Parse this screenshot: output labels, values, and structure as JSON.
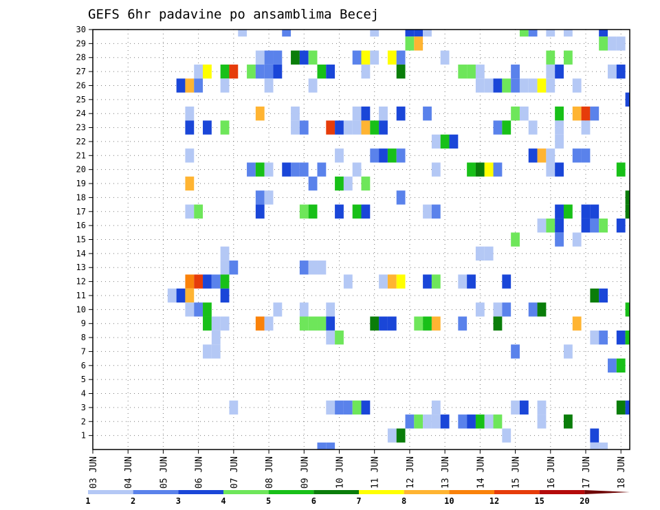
{
  "chart_data": {
    "type": "heatmap",
    "title": "GEFS 6hr padavine po ansamblima Becej",
    "xlabel": "",
    "ylabel": "",
    "x_tick_labels": [
      "03 JUN",
      "04 JUN",
      "05 JUN",
      "06 JUN",
      "07 JUN",
      "08 JUN",
      "09 JUN",
      "10 JUN",
      "11 JUN",
      "12 JUN",
      "13 JUN",
      "14 JUN",
      "15 JUN",
      "16 JUN",
      "17 JUN",
      "18 JUN"
    ],
    "y_tick_labels": [
      "1",
      "2",
      "3",
      "4",
      "5",
      "6",
      "7",
      "8",
      "9",
      "10",
      "11",
      "12",
      "13",
      "14",
      "15",
      "16",
      "17",
      "18",
      "19",
      "20",
      "21",
      "22",
      "23",
      "24",
      "25",
      "26",
      "27",
      "28",
      "29",
      "30"
    ],
    "x_range": [
      0,
      61
    ],
    "y_range": [
      0,
      30
    ],
    "grid": true,
    "grid_style": "dotted",
    "colorbar": {
      "labels": [
        "1",
        "2",
        "3",
        "4",
        "5",
        "6",
        "7",
        "8",
        "10",
        "12",
        "15",
        "20"
      ],
      "colors": [
        "#b4c8f5",
        "#5a82eb",
        "#1a46d8",
        "#6ee65a",
        "#18c018",
        "#0a7d0a",
        "#ffff00",
        "#ffb432",
        "#fa820a",
        "#e63c0a",
        "#b40a0a",
        "#6e0505"
      ]
    },
    "cells": [
      {
        "m": 30,
        "s": [
          [
            17,
            "b1"
          ],
          [
            22,
            "b2"
          ],
          [
            32,
            "b1"
          ],
          [
            36,
            "b3"
          ],
          [
            37,
            "b3"
          ],
          [
            38,
            "b1"
          ],
          [
            49,
            "g1"
          ],
          [
            50,
            "b2"
          ],
          [
            52,
            "b1"
          ],
          [
            54,
            "b1"
          ],
          [
            58,
            "b3"
          ]
        ]
      },
      {
        "m": 29,
        "s": [
          [
            36,
            "g1"
          ],
          [
            37,
            "o1"
          ],
          [
            58,
            "g1"
          ],
          [
            59,
            "b1"
          ],
          [
            60,
            "b1"
          ]
        ]
      },
      {
        "m": 28,
        "s": [
          [
            19,
            "b1"
          ],
          [
            20,
            "b2"
          ],
          [
            21,
            "b2"
          ],
          [
            23,
            "g3"
          ],
          [
            24,
            "b3"
          ],
          [
            25,
            "g1"
          ],
          [
            30,
            "b2"
          ],
          [
            31,
            "y"
          ],
          [
            32,
            "b1"
          ],
          [
            34,
            "y"
          ],
          [
            35,
            "b2"
          ],
          [
            40,
            "b1"
          ],
          [
            52,
            "g1"
          ],
          [
            54,
            "g1"
          ]
        ]
      },
      {
        "m": 27,
        "s": [
          [
            12,
            "b1"
          ],
          [
            13,
            "y"
          ],
          [
            15,
            "g2"
          ],
          [
            16,
            "r1"
          ],
          [
            18,
            "g1"
          ],
          [
            19,
            "b2"
          ],
          [
            20,
            "b2"
          ],
          [
            21,
            "b3"
          ],
          [
            26,
            "g2"
          ],
          [
            27,
            "b3"
          ],
          [
            31,
            "b1"
          ],
          [
            35,
            "g3"
          ],
          [
            42,
            "g1"
          ],
          [
            43,
            "g1"
          ],
          [
            44,
            "b1"
          ],
          [
            48,
            "b2"
          ],
          [
            52,
            "b1"
          ],
          [
            53,
            "b3"
          ],
          [
            59,
            "b1"
          ],
          [
            60,
            "b3"
          ]
        ]
      },
      {
        "m": 26,
        "s": [
          [
            10,
            "b3"
          ],
          [
            11,
            "o1"
          ],
          [
            12,
            "b2"
          ],
          [
            15,
            "b1"
          ],
          [
            20,
            "b1"
          ],
          [
            25,
            "b1"
          ],
          [
            44,
            "b1"
          ],
          [
            45,
            "b1"
          ],
          [
            46,
            "b3"
          ],
          [
            47,
            "g1"
          ],
          [
            48,
            "b2"
          ],
          [
            49,
            "b1"
          ],
          [
            50,
            "b1"
          ],
          [
            51,
            "y"
          ],
          [
            52,
            "b1"
          ],
          [
            55,
            "b1"
          ]
        ]
      },
      {
        "m": 25,
        "s": [
          [
            61,
            "b3"
          ]
        ]
      },
      {
        "m": 24,
        "s": [
          [
            11,
            "b1"
          ],
          [
            19,
            "o1"
          ],
          [
            23,
            "b1"
          ],
          [
            30,
            "b1"
          ],
          [
            31,
            "b3"
          ],
          [
            33,
            "b1"
          ],
          [
            35,
            "b3"
          ],
          [
            38,
            "b2"
          ],
          [
            48,
            "g1"
          ],
          [
            49,
            "b1"
          ],
          [
            53,
            "g2"
          ],
          [
            55,
            "o1"
          ],
          [
            56,
            "r1"
          ],
          [
            57,
            "b2"
          ]
        ]
      },
      {
        "m": 23,
        "s": [
          [
            11,
            "b3"
          ],
          [
            13,
            "b3"
          ],
          [
            15,
            "g1"
          ],
          [
            23,
            "b1"
          ],
          [
            24,
            "b2"
          ],
          [
            27,
            "r1"
          ],
          [
            28,
            "b3"
          ],
          [
            29,
            "b1"
          ],
          [
            30,
            "b1"
          ],
          [
            31,
            "o1"
          ],
          [
            32,
            "g2"
          ],
          [
            33,
            "b3"
          ],
          [
            46,
            "b2"
          ],
          [
            47,
            "g2"
          ],
          [
            50,
            "b1"
          ],
          [
            53,
            "b1"
          ],
          [
            56,
            "b1"
          ]
        ]
      },
      {
        "m": 22,
        "s": [
          [
            39,
            "b1"
          ],
          [
            40,
            "g2"
          ],
          [
            41,
            "b3"
          ],
          [
            53,
            "b1"
          ]
        ]
      },
      {
        "m": 21,
        "s": [
          [
            11,
            "b1"
          ],
          [
            28,
            "b1"
          ],
          [
            32,
            "b2"
          ],
          [
            33,
            "b3"
          ],
          [
            34,
            "g2"
          ],
          [
            35,
            "b2"
          ],
          [
            50,
            "b3"
          ],
          [
            51,
            "o1"
          ],
          [
            52,
            "b1"
          ],
          [
            55,
            "b2"
          ],
          [
            56,
            "b2"
          ]
        ]
      },
      {
        "m": 20,
        "s": [
          [
            18,
            "b2"
          ],
          [
            19,
            "g2"
          ],
          [
            20,
            "b1"
          ],
          [
            22,
            "b3"
          ],
          [
            23,
            "b2"
          ],
          [
            24,
            "b2"
          ],
          [
            26,
            "b2"
          ],
          [
            30,
            "b1"
          ],
          [
            39,
            "b1"
          ],
          [
            43,
            "g2"
          ],
          [
            44,
            "g3"
          ],
          [
            45,
            "y"
          ],
          [
            46,
            "b2"
          ],
          [
            52,
            "b1"
          ],
          [
            53,
            "b3"
          ],
          [
            60,
            "g2"
          ]
        ]
      },
      {
        "m": 19,
        "s": [
          [
            11,
            "o1"
          ],
          [
            25,
            "b2"
          ],
          [
            28,
            "g2"
          ],
          [
            29,
            "b1"
          ],
          [
            31,
            "g1"
          ]
        ]
      },
      {
        "m": 18,
        "s": [
          [
            19,
            "b2"
          ],
          [
            20,
            "b1"
          ],
          [
            35,
            "b2"
          ],
          [
            61,
            "g3"
          ]
        ]
      },
      {
        "m": 17,
        "s": [
          [
            11,
            "b1"
          ],
          [
            12,
            "g1"
          ],
          [
            19,
            "b3"
          ],
          [
            24,
            "g1"
          ],
          [
            25,
            "g2"
          ],
          [
            28,
            "b3"
          ],
          [
            30,
            "g2"
          ],
          [
            31,
            "b3"
          ],
          [
            38,
            "b1"
          ],
          [
            39,
            "b2"
          ],
          [
            53,
            "b3"
          ],
          [
            54,
            "g2"
          ],
          [
            56,
            "b3"
          ],
          [
            57,
            "b3"
          ],
          [
            61,
            "g3"
          ]
        ]
      },
      {
        "m": 16,
        "s": [
          [
            51,
            "b1"
          ],
          [
            52,
            "g1"
          ],
          [
            53,
            "b3"
          ],
          [
            56,
            "b3"
          ],
          [
            57,
            "b2"
          ],
          [
            58,
            "g1"
          ],
          [
            60,
            "b3"
          ]
        ]
      },
      {
        "m": 15,
        "s": [
          [
            48,
            "g1"
          ],
          [
            53,
            "b2"
          ],
          [
            55,
            "b1"
          ]
        ]
      },
      {
        "m": 14,
        "s": [
          [
            15,
            "b1"
          ],
          [
            44,
            "b1"
          ],
          [
            45,
            "b1"
          ]
        ]
      },
      {
        "m": 13,
        "s": [
          [
            15,
            "b1"
          ],
          [
            16,
            "b2"
          ],
          [
            24,
            "b2"
          ],
          [
            25,
            "b1"
          ],
          [
            26,
            "b1"
          ]
        ]
      },
      {
        "m": 12,
        "s": [
          [
            11,
            "o2"
          ],
          [
            12,
            "r1"
          ],
          [
            13,
            "b3"
          ],
          [
            14,
            "b2"
          ],
          [
            15,
            "g2"
          ],
          [
            29,
            "b1"
          ],
          [
            33,
            "b1"
          ],
          [
            34,
            "o1"
          ],
          [
            35,
            "y"
          ],
          [
            38,
            "b3"
          ],
          [
            39,
            "g1"
          ],
          [
            42,
            "b1"
          ],
          [
            43,
            "b3"
          ],
          [
            47,
            "b3"
          ]
        ]
      },
      {
        "m": 11,
        "s": [
          [
            9,
            "b1"
          ],
          [
            10,
            "b3"
          ],
          [
            11,
            "o1"
          ],
          [
            15,
            "b3"
          ],
          [
            57,
            "g3"
          ],
          [
            58,
            "b3"
          ]
        ]
      },
      {
        "m": 10,
        "s": [
          [
            11,
            "b1"
          ],
          [
            12,
            "b2"
          ],
          [
            13,
            "g2"
          ],
          [
            21,
            "b1"
          ],
          [
            24,
            "b1"
          ],
          [
            27,
            "b1"
          ],
          [
            44,
            "b1"
          ],
          [
            46,
            "b1"
          ],
          [
            47,
            "b2"
          ],
          [
            50,
            "b2"
          ],
          [
            51,
            "g3"
          ],
          [
            61,
            "g2"
          ]
        ]
      },
      {
        "m": 9,
        "s": [
          [
            13,
            "g2"
          ],
          [
            14,
            "b1"
          ],
          [
            15,
            "b1"
          ],
          [
            19,
            "o2"
          ],
          [
            20,
            "b1"
          ],
          [
            24,
            "g1"
          ],
          [
            25,
            "g1"
          ],
          [
            26,
            "g1"
          ],
          [
            27,
            "b3"
          ],
          [
            32,
            "g3"
          ],
          [
            33,
            "b3"
          ],
          [
            34,
            "b3"
          ],
          [
            37,
            "g1"
          ],
          [
            38,
            "g2"
          ],
          [
            39,
            "o1"
          ],
          [
            42,
            "b2"
          ],
          [
            46,
            "g3"
          ],
          [
            55,
            "o1"
          ]
        ]
      },
      {
        "m": 8,
        "s": [
          [
            14,
            "b1"
          ],
          [
            27,
            "b1"
          ],
          [
            28,
            "g1"
          ],
          [
            57,
            "b1"
          ],
          [
            58,
            "b2"
          ],
          [
            60,
            "b3"
          ],
          [
            61,
            "g2"
          ]
        ]
      },
      {
        "m": 7,
        "s": [
          [
            13,
            "b1"
          ],
          [
            14,
            "b1"
          ],
          [
            48,
            "b2"
          ],
          [
            54,
            "b1"
          ]
        ]
      },
      {
        "m": 6,
        "s": [
          [
            59,
            "b2"
          ],
          [
            60,
            "g2"
          ]
        ]
      },
      {
        "m": 3,
        "s": [
          [
            16,
            "b1"
          ],
          [
            27,
            "b1"
          ],
          [
            28,
            "b2"
          ],
          [
            29,
            "b2"
          ],
          [
            30,
            "g1"
          ],
          [
            31,
            "b3"
          ],
          [
            39,
            "b1"
          ],
          [
            48,
            "b1"
          ],
          [
            49,
            "b3"
          ],
          [
            51,
            "b1"
          ],
          [
            60,
            "g3"
          ],
          [
            61,
            "b3"
          ]
        ]
      },
      {
        "m": 2,
        "s": [
          [
            36,
            "b2"
          ],
          [
            37,
            "g1"
          ],
          [
            38,
            "b1"
          ],
          [
            39,
            "b1"
          ],
          [
            40,
            "b3"
          ],
          [
            42,
            "b2"
          ],
          [
            43,
            "b3"
          ],
          [
            44,
            "g2"
          ],
          [
            45,
            "b1"
          ],
          [
            46,
            "g1"
          ],
          [
            51,
            "b1"
          ],
          [
            54,
            "g3"
          ]
        ]
      },
      {
        "m": 1,
        "s": [
          [
            34,
            "b1"
          ],
          [
            35,
            "g3"
          ],
          [
            47,
            "b1"
          ],
          [
            57,
            "b3"
          ]
        ]
      },
      {
        "m": 0,
        "s": [
          [
            26,
            "b2"
          ],
          [
            27,
            "b2"
          ],
          [
            57,
            "b1"
          ],
          [
            58,
            "b1"
          ]
        ]
      }
    ]
  }
}
